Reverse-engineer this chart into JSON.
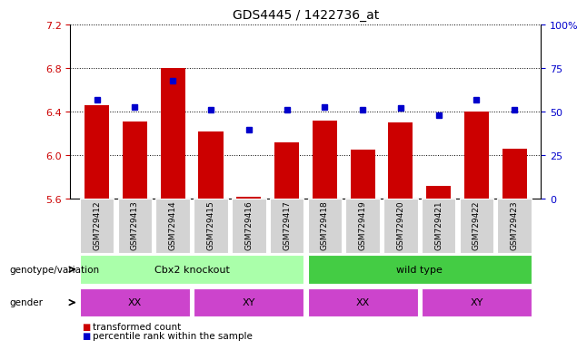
{
  "title": "GDS4445 / 1422736_at",
  "samples": [
    "GSM729412",
    "GSM729413",
    "GSM729414",
    "GSM729415",
    "GSM729416",
    "GSM729417",
    "GSM729418",
    "GSM729419",
    "GSM729420",
    "GSM729421",
    "GSM729422",
    "GSM729423"
  ],
  "red_values": [
    6.46,
    6.31,
    6.8,
    6.22,
    5.62,
    6.12,
    6.32,
    6.05,
    6.3,
    5.72,
    6.4,
    6.06
  ],
  "blue_values": [
    57,
    53,
    68,
    51,
    40,
    51,
    53,
    51,
    52,
    48,
    57,
    51
  ],
  "y_min": 5.6,
  "y_max": 7.2,
  "y_ticks_red": [
    5.6,
    6.0,
    6.4,
    6.8,
    7.2
  ],
  "y_ticks_blue": [
    0,
    25,
    50,
    75,
    100
  ],
  "geno_groups": [
    {
      "label": "Cbx2 knockout",
      "start": 0,
      "end": 5,
      "color": "#aaffaa"
    },
    {
      "label": "wild type",
      "start": 6,
      "end": 11,
      "color": "#44cc44"
    }
  ],
  "gender_groups": [
    {
      "label": "XX",
      "start": 0,
      "end": 2
    },
    {
      "label": "XY",
      "start": 3,
      "end": 5
    },
    {
      "label": "XX",
      "start": 6,
      "end": 8
    },
    {
      "label": "XY",
      "start": 9,
      "end": 11
    }
  ],
  "bar_color": "#CC0000",
  "dot_color": "#0000CC",
  "baseline": 5.6,
  "legend_items": [
    {
      "label": "transformed count",
      "color": "#CC0000"
    },
    {
      "label": "percentile rank within the sample",
      "color": "#0000CC"
    }
  ],
  "genotype_label": "genotype/variation",
  "gender_label": "gender",
  "xtick_bg": "#D3D3D3",
  "gender_color": "#CC44CC"
}
